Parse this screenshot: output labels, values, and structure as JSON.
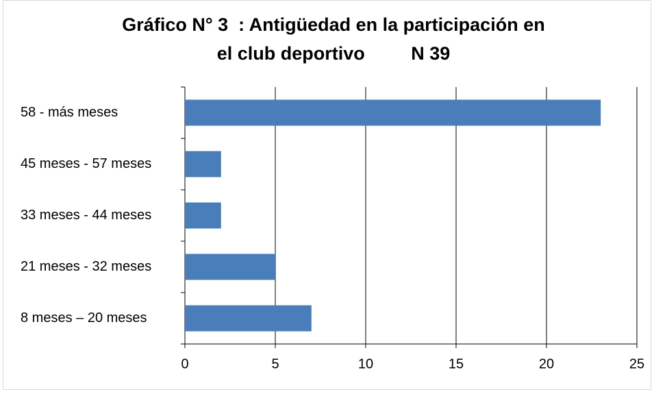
{
  "chart_data": {
    "type": "bar",
    "orientation": "horizontal",
    "title": [
      "Gráfico N° 3  : Antigüedad en la participación en",
      "el club deportivo         N 39"
    ],
    "categories": [
      "58 - más meses",
      "45 meses - 57 meses",
      "33 meses - 44 meses",
      "21 meses - 32 meses",
      "8 meses – 20 meses"
    ],
    "values": [
      23,
      2,
      2,
      5,
      7
    ],
    "color": "#4a7ebb",
    "xlim": [
      0,
      25
    ],
    "xticks": [
      0,
      5,
      10,
      15,
      20,
      25
    ],
    "grid": true
  }
}
